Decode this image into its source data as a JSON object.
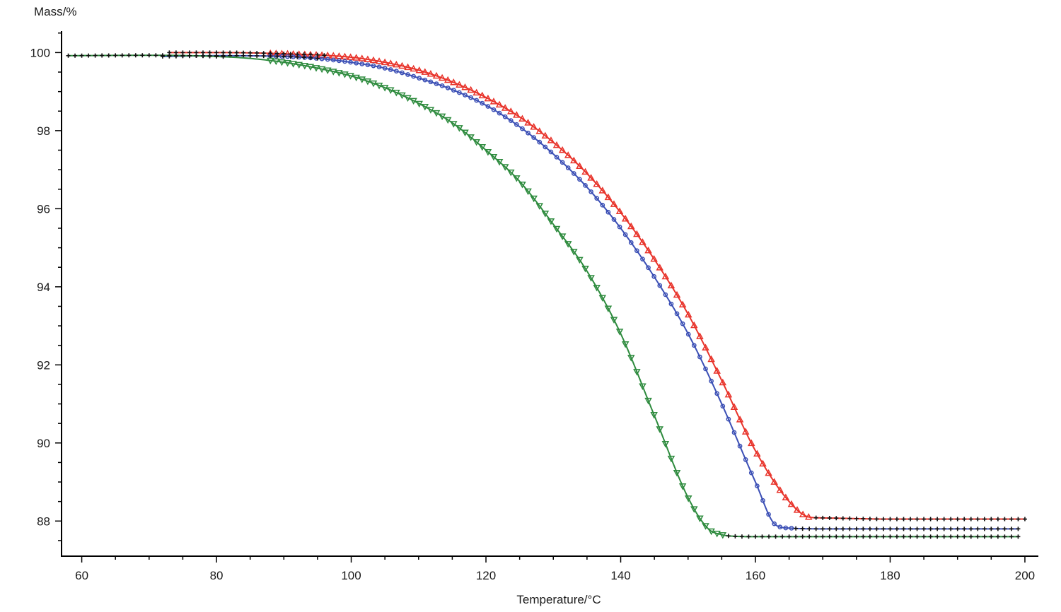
{
  "chart_data": {
    "type": "line",
    "title": "",
    "xlabel": "Temperature/°C",
    "ylabel": "Mass/%",
    "xlim": [
      57,
      202
    ],
    "ylim": [
      87.1,
      100.55
    ],
    "x_ticks": [
      "60",
      "80",
      "100",
      "120",
      "140",
      "160",
      "180",
      "200"
    ],
    "y_ticks": [
      "88",
      "90",
      "92",
      "94",
      "96",
      "98",
      "100"
    ],
    "grid": false,
    "legend": "none",
    "series": [
      {
        "color": "#e8332a",
        "marker": "triangle-up",
        "x": [
          73,
          80,
          90,
          100,
          105,
          110,
          115,
          120,
          125,
          130,
          135,
          140,
          145,
          150,
          155,
          160,
          165,
          168,
          170,
          180,
          190,
          200
        ],
        "y": [
          100.0,
          100.0,
          99.97,
          99.88,
          99.75,
          99.55,
          99.25,
          98.85,
          98.35,
          97.7,
          96.9,
          95.9,
          94.7,
          93.3,
          91.6,
          89.8,
          88.5,
          88.1,
          88.08,
          88.05,
          88.05,
          88.05
        ]
      },
      {
        "color": "#3b4fb5",
        "marker": "circle",
        "x": [
          72,
          80,
          90,
          95,
          100,
          105,
          110,
          115,
          120,
          125,
          130,
          135,
          140,
          145,
          150,
          155,
          160,
          163,
          165,
          170,
          180,
          190,
          199
        ],
        "y": [
          99.9,
          99.92,
          99.9,
          99.85,
          99.75,
          99.6,
          99.35,
          99.05,
          98.65,
          98.1,
          97.4,
          96.55,
          95.5,
          94.25,
          92.8,
          91.0,
          89.0,
          87.9,
          87.82,
          87.8,
          87.8,
          87.8,
          87.8
        ]
      },
      {
        "color": "#2e8b3e",
        "marker": "triangle-down",
        "x": [
          58,
          70,
          80,
          85,
          90,
          95,
          100,
          105,
          110,
          115,
          120,
          125,
          130,
          135,
          140,
          145,
          150,
          153,
          155,
          156,
          160,
          170,
          180,
          190,
          199
        ],
        "y": [
          99.92,
          99.93,
          99.9,
          99.85,
          99.75,
          99.6,
          99.4,
          99.1,
          98.7,
          98.2,
          97.5,
          96.7,
          95.6,
          94.4,
          92.8,
          90.7,
          88.6,
          87.8,
          87.65,
          87.62,
          87.6,
          87.6,
          87.6,
          87.6,
          87.6
        ]
      }
    ]
  }
}
